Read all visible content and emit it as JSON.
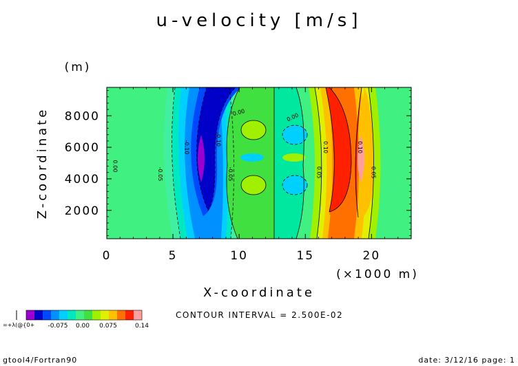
{
  "chart_data": {
    "type": "contour",
    "title": "u-velocity [m/s]",
    "xlabel": "X-coordinate",
    "ylabel": "Z-coordinate",
    "x_unit": "(×1000 m)",
    "y_unit": "(m)",
    "xlim": [
      0,
      23
    ],
    "ylim": [
      200,
      9800
    ],
    "x_ticks": [
      0,
      5,
      10,
      15,
      20
    ],
    "x_tick_labels": [
      "0",
      "5",
      "10",
      "15",
      "20"
    ],
    "y_ticks": [
      2000,
      4000,
      6000,
      8000
    ],
    "y_tick_labels": [
      "2000",
      "4000",
      "6000",
      "8000"
    ],
    "grid": false,
    "contour_interval_text": "CONTOUR INTERVAL = 2.500E-02",
    "contour_labels": [
      {
        "text": "0.00",
        "x": 0.5,
        "z": 4800,
        "rot": 90
      },
      {
        "text": "-0.05",
        "x": 3.9,
        "z": 4300,
        "rot": 90
      },
      {
        "text": "-0.10",
        "x": 5.9,
        "z": 6000,
        "rot": 90
      },
      {
        "text": "-0.10",
        "x": 8.3,
        "z": 6500,
        "rot": 90
      },
      {
        "text": "-0.05",
        "x": 9.2,
        "z": 4300,
        "rot": 90
      },
      {
        "text": "0.00",
        "x": 10.0,
        "z": 8100,
        "rot": -15
      },
      {
        "text": "0.00",
        "x": 14.1,
        "z": 7800,
        "rot": -25
      },
      {
        "text": "0.05",
        "x": 15.9,
        "z": 4400,
        "rot": 90
      },
      {
        "text": "0.10",
        "x": 16.4,
        "z": 6000,
        "rot": 90
      },
      {
        "text": "0.10",
        "x": 19.0,
        "z": 6000,
        "rot": 90
      },
      {
        "text": "0.05",
        "x": 20.0,
        "z": 4400,
        "rot": 90
      }
    ],
    "colorbar": {
      "tick_labels": [
        "-0.075",
        "0.00",
        "0.075",
        "0.14"
      ],
      "colors": [
        "#9c00d0",
        "#0000c8",
        "#0048ff",
        "#0090ff",
        "#00d0ff",
        "#00e8c0",
        "#40f080",
        "#40e040",
        "#a0f000",
        "#e0f000",
        "#ffc000",
        "#ff7000",
        "#ff2000",
        "#ffa0a0"
      ],
      "min_label": "=+λ(@{0+"
    }
  },
  "footer": {
    "left": "gtool4/Fortran90",
    "right": "date: 3/12/16 page: 1"
  }
}
